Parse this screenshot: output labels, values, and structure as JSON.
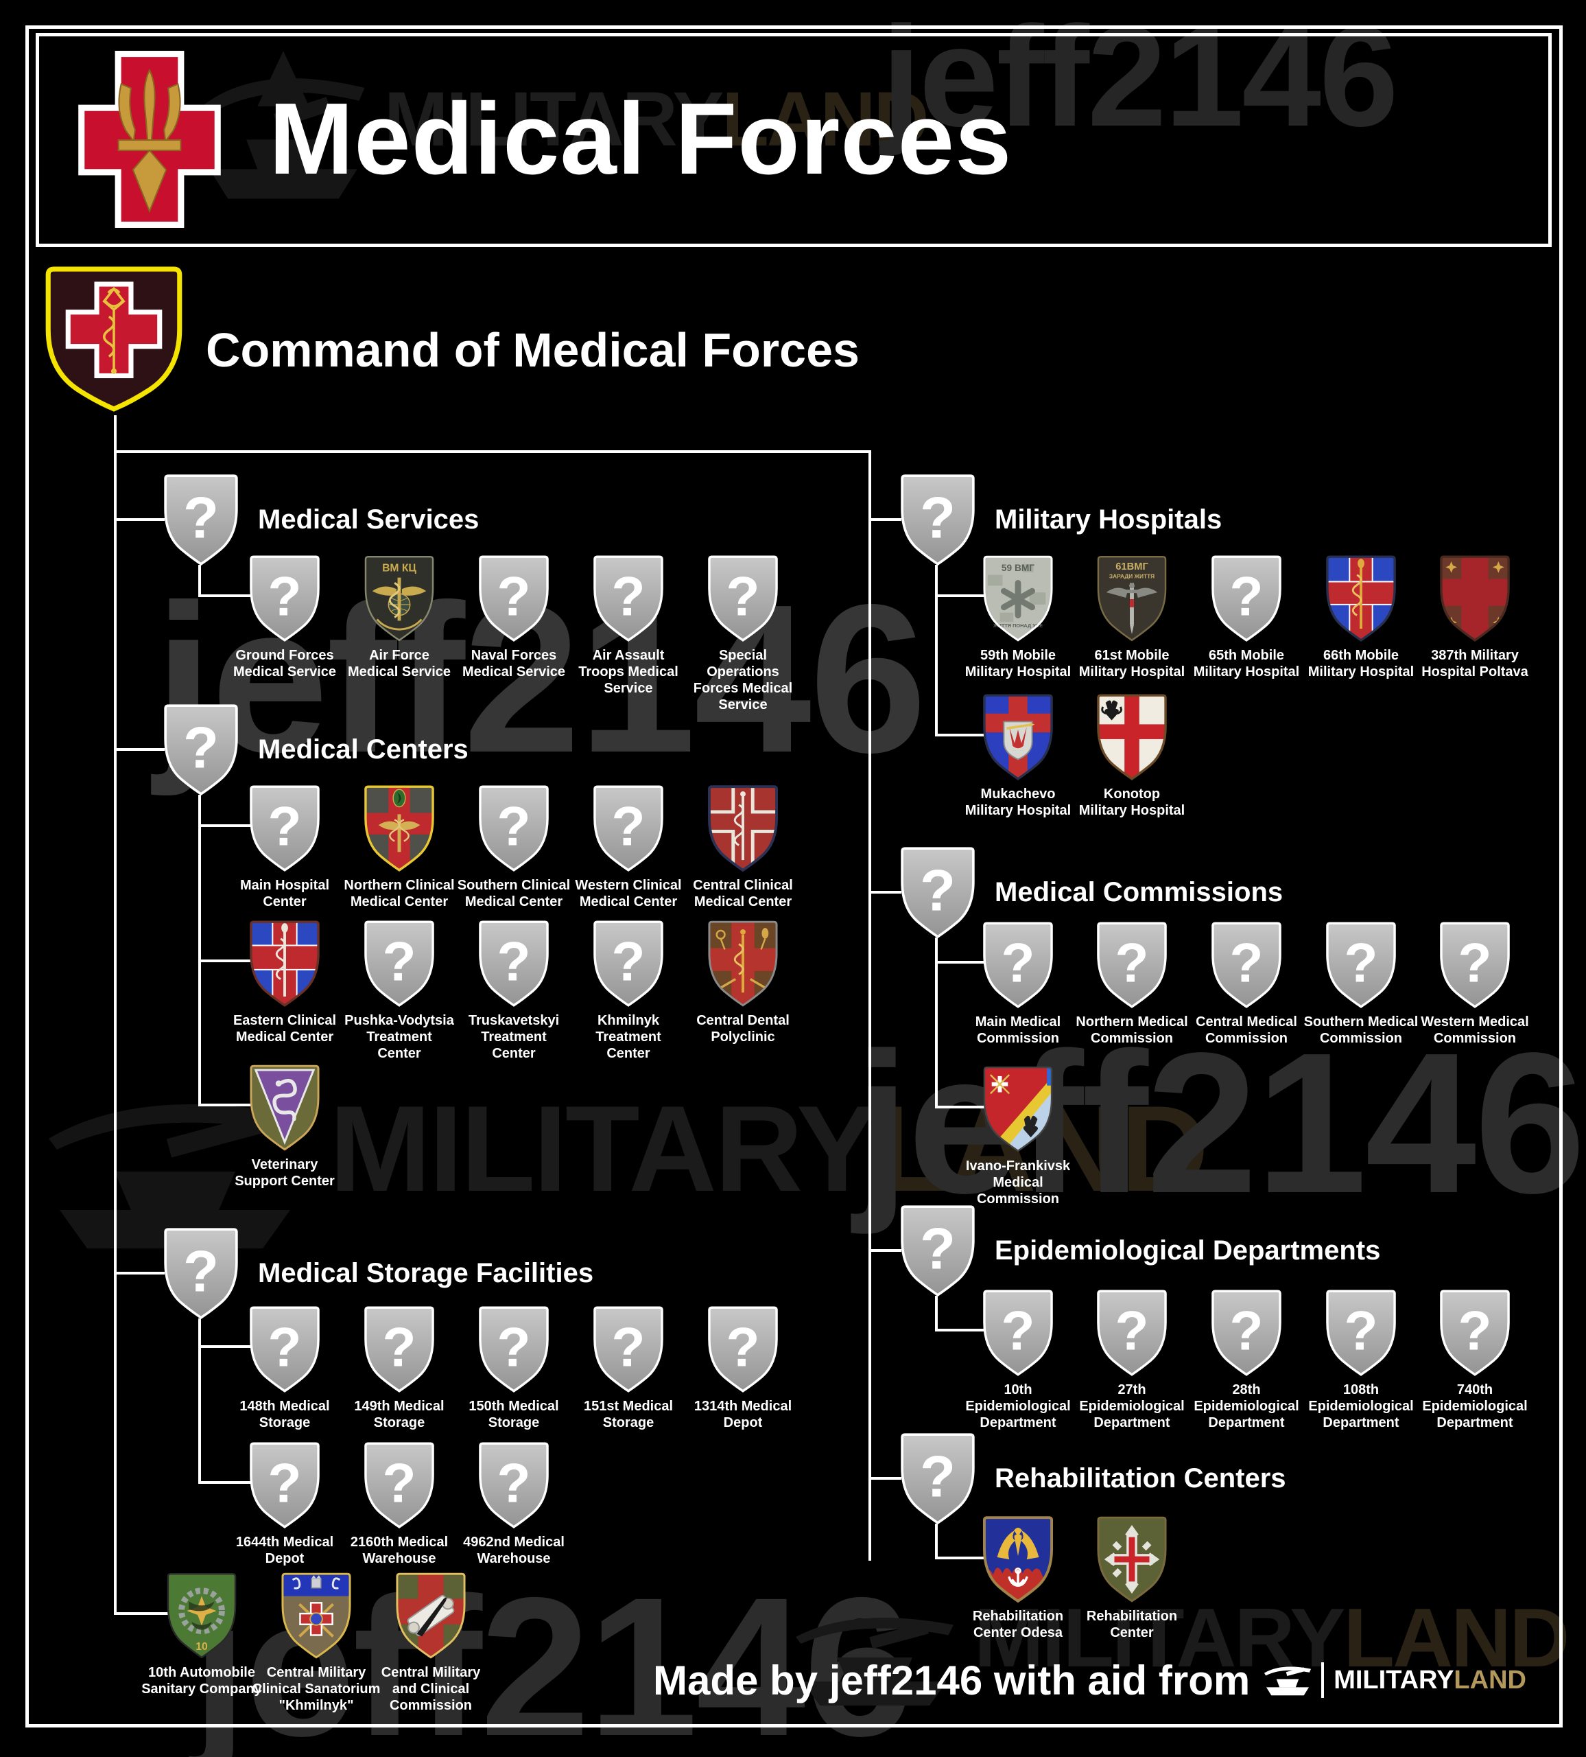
{
  "header": {
    "title": "Medical Forces"
  },
  "command": {
    "title": "Command of Medical Forces"
  },
  "sections_left": [
    {
      "id": "medical-services",
      "title": "Medical Services",
      "rows": [
        {
          "units": [
            {
              "id": "ground-forces-medical-service",
              "label": "Ground Forces\nMedical Service",
              "emblem_ref": "#sym-question"
            },
            {
              "id": "air-force-medical-service",
              "label": "Air Force\nMedical Service",
              "emblem_ref": "#sym-af"
            },
            {
              "id": "naval-forces-medical-service",
              "label": "Naval Forces\nMedical Service",
              "emblem_ref": "#sym-question"
            },
            {
              "id": "air-assault-troops-medical-service",
              "label": "Air Assault\nTroops Medical\nService",
              "emblem_ref": "#sym-question"
            },
            {
              "id": "special-operations-forces-medical-service",
              "label": "Special Operations\nForces Medical\nService",
              "emblem_ref": "#sym-question"
            }
          ]
        }
      ]
    },
    {
      "id": "medical-centers",
      "title": "Medical Centers",
      "rows": [
        {
          "units": [
            {
              "id": "main-hospital-center",
              "label": "Main Hospital\nCenter",
              "emblem_ref": "#sym-question"
            },
            {
              "id": "northern-clinical-medical-center",
              "label": "Northern Clinical\nMedical Center",
              "emblem_ref": "#sym-ncmc"
            },
            {
              "id": "southern-clinical-medical-center",
              "label": "Southern Clinical\nMedical Center",
              "emblem_ref": "#sym-question"
            },
            {
              "id": "western-clinical-medical-center",
              "label": "Western Clinical\nMedical Center",
              "emblem_ref": "#sym-question"
            },
            {
              "id": "central-clinical-medical-center",
              "label": "Central Clinical\nMedical Center",
              "emblem_ref": "#sym-ccmc"
            }
          ]
        },
        {
          "units": [
            {
              "id": "eastern-clinical-medical-center",
              "label": "Eastern Clinical\nMedical Center",
              "emblem_ref": "#sym-ecmc"
            },
            {
              "id": "pushka-vodytsia-treatment-center",
              "label": "Pushka-Vodytsia\nTreatment\nCenter",
              "emblem_ref": "#sym-question"
            },
            {
              "id": "truskavetskyi-treatment-center",
              "label": "Truskavetskyi\nTreatment\nCenter",
              "emblem_ref": "#sym-question"
            },
            {
              "id": "khmilnyk-treatment-center",
              "label": "Khmilnyk\nTreatment\nCenter",
              "emblem_ref": "#sym-question"
            },
            {
              "id": "central-dental-polyclinic",
              "label": "Central Dental\nPolyclinic",
              "emblem_ref": "#sym-dental"
            }
          ]
        },
        {
          "units": [
            {
              "id": "veterinary-support-center",
              "label": "Veterinary\nSupport Center",
              "emblem_ref": "#sym-vet"
            }
          ]
        }
      ]
    },
    {
      "id": "medical-storage-facilities",
      "title": "Medical Storage Facilities",
      "rows": [
        {
          "units": [
            {
              "id": "148th-medical-storage",
              "label": "148th Medical\nStorage",
              "emblem_ref": "#sym-question"
            },
            {
              "id": "149th-medical-storage",
              "label": "149th Medical\nStorage",
              "emblem_ref": "#sym-question"
            },
            {
              "id": "150th-medical-storage",
              "label": "150th Medical\nStorage",
              "emblem_ref": "#sym-question"
            },
            {
              "id": "151st-medical-storage",
              "label": "151st Medical\nStorage",
              "emblem_ref": "#sym-question"
            },
            {
              "id": "1314th-medical-depot",
              "label": "1314th Medical\nDepot",
              "emblem_ref": "#sym-question"
            }
          ]
        },
        {
          "units": [
            {
              "id": "1644th-medical-depot",
              "label": "1644th Medical\nDepot",
              "emblem_ref": "#sym-question"
            },
            {
              "id": "2160th-medical-warehouse",
              "label": "2160th Medical\nWarehouse",
              "emblem_ref": "#sym-question"
            },
            {
              "id": "4962nd-medical-warehouse",
              "label": "4962nd Medical\nWarehouse",
              "emblem_ref": "#sym-question"
            }
          ]
        }
      ]
    },
    {
      "id": "command-direct-units",
      "title": "",
      "rows": [
        {
          "units": [
            {
              "id": "10th-automobile-sanitary-company",
              "label": "10th Automobile\nSanitary Company",
              "emblem_ref": "#sym-auto"
            },
            {
              "id": "central-military-clinical-sanatorium-khmilnyk",
              "label": "Central Military\nClinical Sanatorium\n\"Khmilnyk\"",
              "emblem_ref": "#sym-san"
            },
            {
              "id": "central-military-and-clinical-commission",
              "label": "Central Military\nand Clinical\nCommission",
              "emblem_ref": "#sym-ccom"
            }
          ]
        }
      ]
    }
  ],
  "sections_right": [
    {
      "id": "military-hospitals",
      "title": "Military Hospitals",
      "rows": [
        {
          "units": [
            {
              "id": "59th-mobile-military-hospital",
              "label": "59th Mobile\nMilitary Hospital",
              "emblem_ref": "#sym-h59"
            },
            {
              "id": "61st-mobile-military-hospital",
              "label": "61st Mobile\nMilitary Hospital",
              "emblem_ref": "#sym-h61"
            },
            {
              "id": "65th-mobile-military-hospital",
              "label": "65th Mobile\nMilitary Hospital",
              "emblem_ref": "#sym-question"
            },
            {
              "id": "66th-mobile-military-hospital",
              "label": "66th Mobile\nMilitary Hospital",
              "emblem_ref": "#sym-h66"
            },
            {
              "id": "387th-military-hospital-poltava",
              "label": "387th Military\nHospital Poltava",
              "emblem_ref": "#sym-h387"
            }
          ]
        },
        {
          "units": [
            {
              "id": "mukachevo-military-hospital",
              "label": "Mukachevo\nMilitary Hospital",
              "emblem_ref": "#sym-muk"
            },
            {
              "id": "konotop-military-hospital",
              "label": "Konotop\nMilitary Hospital",
              "emblem_ref": "#sym-kon"
            }
          ]
        }
      ]
    },
    {
      "id": "medical-commissions",
      "title": "Medical Commissions",
      "rows": [
        {
          "units": [
            {
              "id": "main-medical-commission",
              "label": "Main Medical\nCommission",
              "emblem_ref": "#sym-question"
            },
            {
              "id": "northern-medical-commission",
              "label": "Northern Medical\nCommission",
              "emblem_ref": "#sym-question"
            },
            {
              "id": "central-medical-commission",
              "label": "Central Medical\nCommission",
              "emblem_ref": "#sym-question"
            },
            {
              "id": "southern-medical-commission",
              "label": "Southern Medical\nCommission",
              "emblem_ref": "#sym-question"
            },
            {
              "id": "western-medical-commission",
              "label": "Western Medical\nCommission",
              "emblem_ref": "#sym-question"
            }
          ]
        },
        {
          "units": [
            {
              "id": "ivano-frankivsk-medical-commission",
              "label": "Ivano-Frankivsk\nMedical\nCommission",
              "emblem_ref": "#sym-iv"
            }
          ]
        }
      ]
    },
    {
      "id": "epidemiological-departments",
      "title": "Epidemiological Departments",
      "rows": [
        {
          "units": [
            {
              "id": "10th-epidemiological-department",
              "label": "10th\nEpidemiological\nDepartment",
              "emblem_ref": "#sym-question"
            },
            {
              "id": "27th-epidemiological-department",
              "label": "27th\nEpidemiological\nDepartment",
              "emblem_ref": "#sym-question"
            },
            {
              "id": "28th-epidemiological-department",
              "label": "28th\nEpidemiological\nDepartment",
              "emblem_ref": "#sym-question"
            },
            {
              "id": "108th-epidemiological-department",
              "label": "108th\nEpidemiological\nDepartment",
              "emblem_ref": "#sym-question"
            },
            {
              "id": "740th-epidemiological-department",
              "label": "740th\nEpidemiological\nDepartment",
              "emblem_ref": "#sym-question"
            }
          ]
        }
      ]
    },
    {
      "id": "rehabilitation-centers",
      "title": "Rehabilitation Centers",
      "rows": [
        {
          "units": [
            {
              "id": "rehabilitation-center-odesa",
              "label": "Rehabilitation\nCenter Odesa",
              "emblem_ref": "#sym-odesa"
            },
            {
              "id": "rehabilitation-center",
              "label": "Rehabilitation\nCenter",
              "emblem_ref": "#sym-rehab"
            }
          ]
        }
      ]
    }
  ],
  "emblem_texts": {
    "af_top": "ВМ КЦ",
    "h59_top": "59 ВМГ",
    "h59_bottom": "ЖИТТЯ ПОНАД УСЕ",
    "h61_top": "61ВМГ",
    "h61_sub": "ЗАРАДИ ЖИТТЯ",
    "auto_num": "10",
    "question_mark": "?"
  },
  "footer": {
    "credit": "Made by jeff2146 with aid from",
    "brand_white": "MILITARY",
    "brand_gold": "LAND"
  },
  "watermarks": {
    "jeff": "jeff2146",
    "brand_white": "MILITARY",
    "brand_gold": "LAND"
  },
  "colors": {
    "background": "#000000",
    "line": "#ffffff",
    "shield_gray": "#b2b2b2",
    "cross_red": "#c6182e",
    "command_field": "#2e1114",
    "command_border": "#f5e400",
    "brand_gold": "#b3985e",
    "gold": "#d4a848"
  }
}
